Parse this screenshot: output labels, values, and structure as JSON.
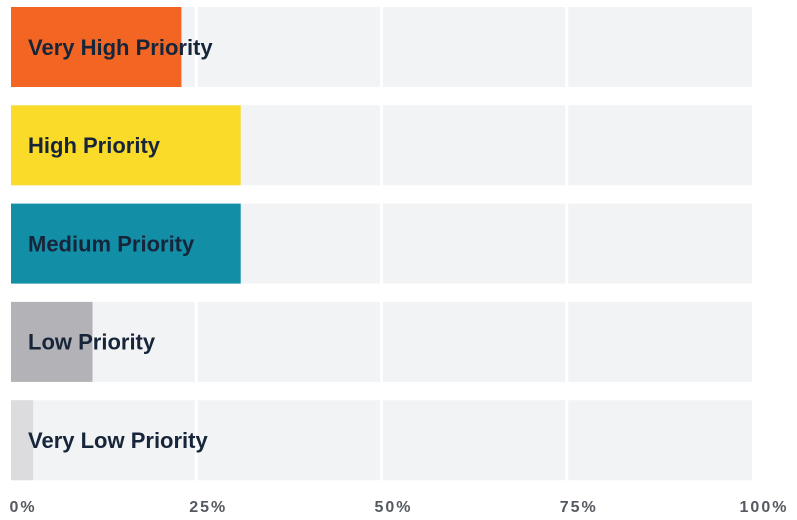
{
  "chart_data": {
    "type": "hbar",
    "categories": [
      "Very High Priority",
      "High Priority",
      "Medium Priority",
      "Low Priority",
      "Very Low Priority"
    ],
    "values": [
      23,
      31,
      31,
      11,
      3
    ],
    "colors": [
      "#f26522",
      "#fbdb29",
      "#128ea7",
      "#b3b3b7",
      "#dcdcde"
    ],
    "xlim": [
      0,
      100
    ],
    "xticks": [
      {
        "value": 0,
        "label": "0%"
      },
      {
        "value": 25,
        "label": "25%"
      },
      {
        "value": 50,
        "label": "50%"
      },
      {
        "value": 75,
        "label": "75%"
      },
      {
        "value": 100,
        "label": "100%"
      }
    ],
    "grid": true
  }
}
